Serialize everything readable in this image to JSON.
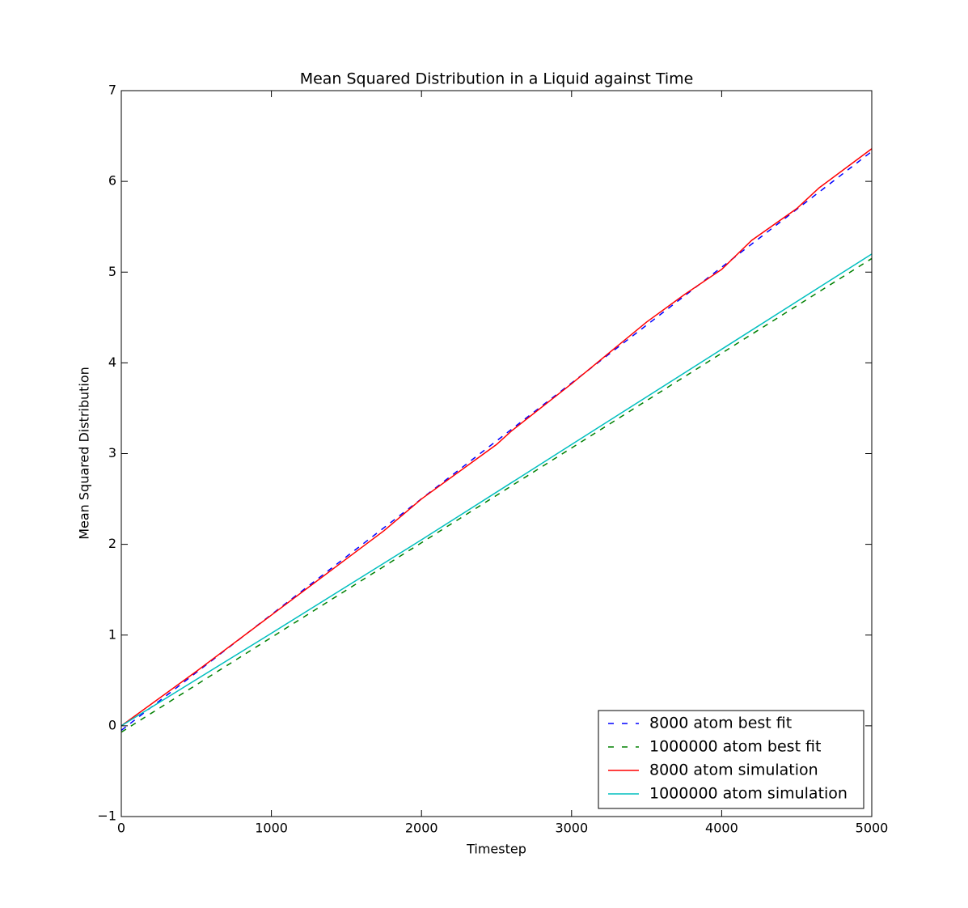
{
  "chart_data": {
    "type": "line",
    "title": "Mean Squared Distribution in a Liquid against Time",
    "x_label": "Timestep",
    "y_label": "Mean Squared Distribution",
    "xlim": [
      0,
      5000
    ],
    "ylim": [
      -1,
      7
    ],
    "xticks": [
      0,
      1000,
      2000,
      3000,
      4000,
      5000
    ],
    "yticks": [
      {
        "value": -1,
        "label": "−1"
      },
      0,
      1,
      2,
      3,
      4,
      5,
      6,
      7
    ],
    "legend": "lower right",
    "series": [
      {
        "name": "8000 atom best fit",
        "color": "#0000ff",
        "style": "dashed",
        "x": [
          0,
          5000
        ],
        "values": [
          -0.05,
          6.33
        ]
      },
      {
        "name": "1000000 atom best fit",
        "color": "#008000",
        "style": "dashed",
        "x": [
          0,
          5000
        ],
        "values": [
          -0.07,
          5.15
        ]
      },
      {
        "name": "8000 atom simulation",
        "color": "#ff0000",
        "style": "solid",
        "x": [
          0,
          500,
          1000,
          1500,
          1750,
          2000,
          2500,
          2600,
          3000,
          3500,
          3750,
          4000,
          4200,
          4500,
          4650,
          5000
        ],
        "values": [
          0.0,
          0.6,
          1.22,
          1.84,
          2.15,
          2.5,
          3.1,
          3.25,
          3.77,
          4.45,
          4.75,
          5.03,
          5.35,
          5.7,
          5.93,
          6.36
        ]
      },
      {
        "name": "1000000 atom simulation",
        "color": "#00bfbf",
        "style": "solid",
        "x": [
          0,
          1000,
          2000,
          3000,
          4000,
          5000
        ],
        "values": [
          0.0,
          1.02,
          2.05,
          3.1,
          4.15,
          5.2
        ]
      }
    ]
  }
}
